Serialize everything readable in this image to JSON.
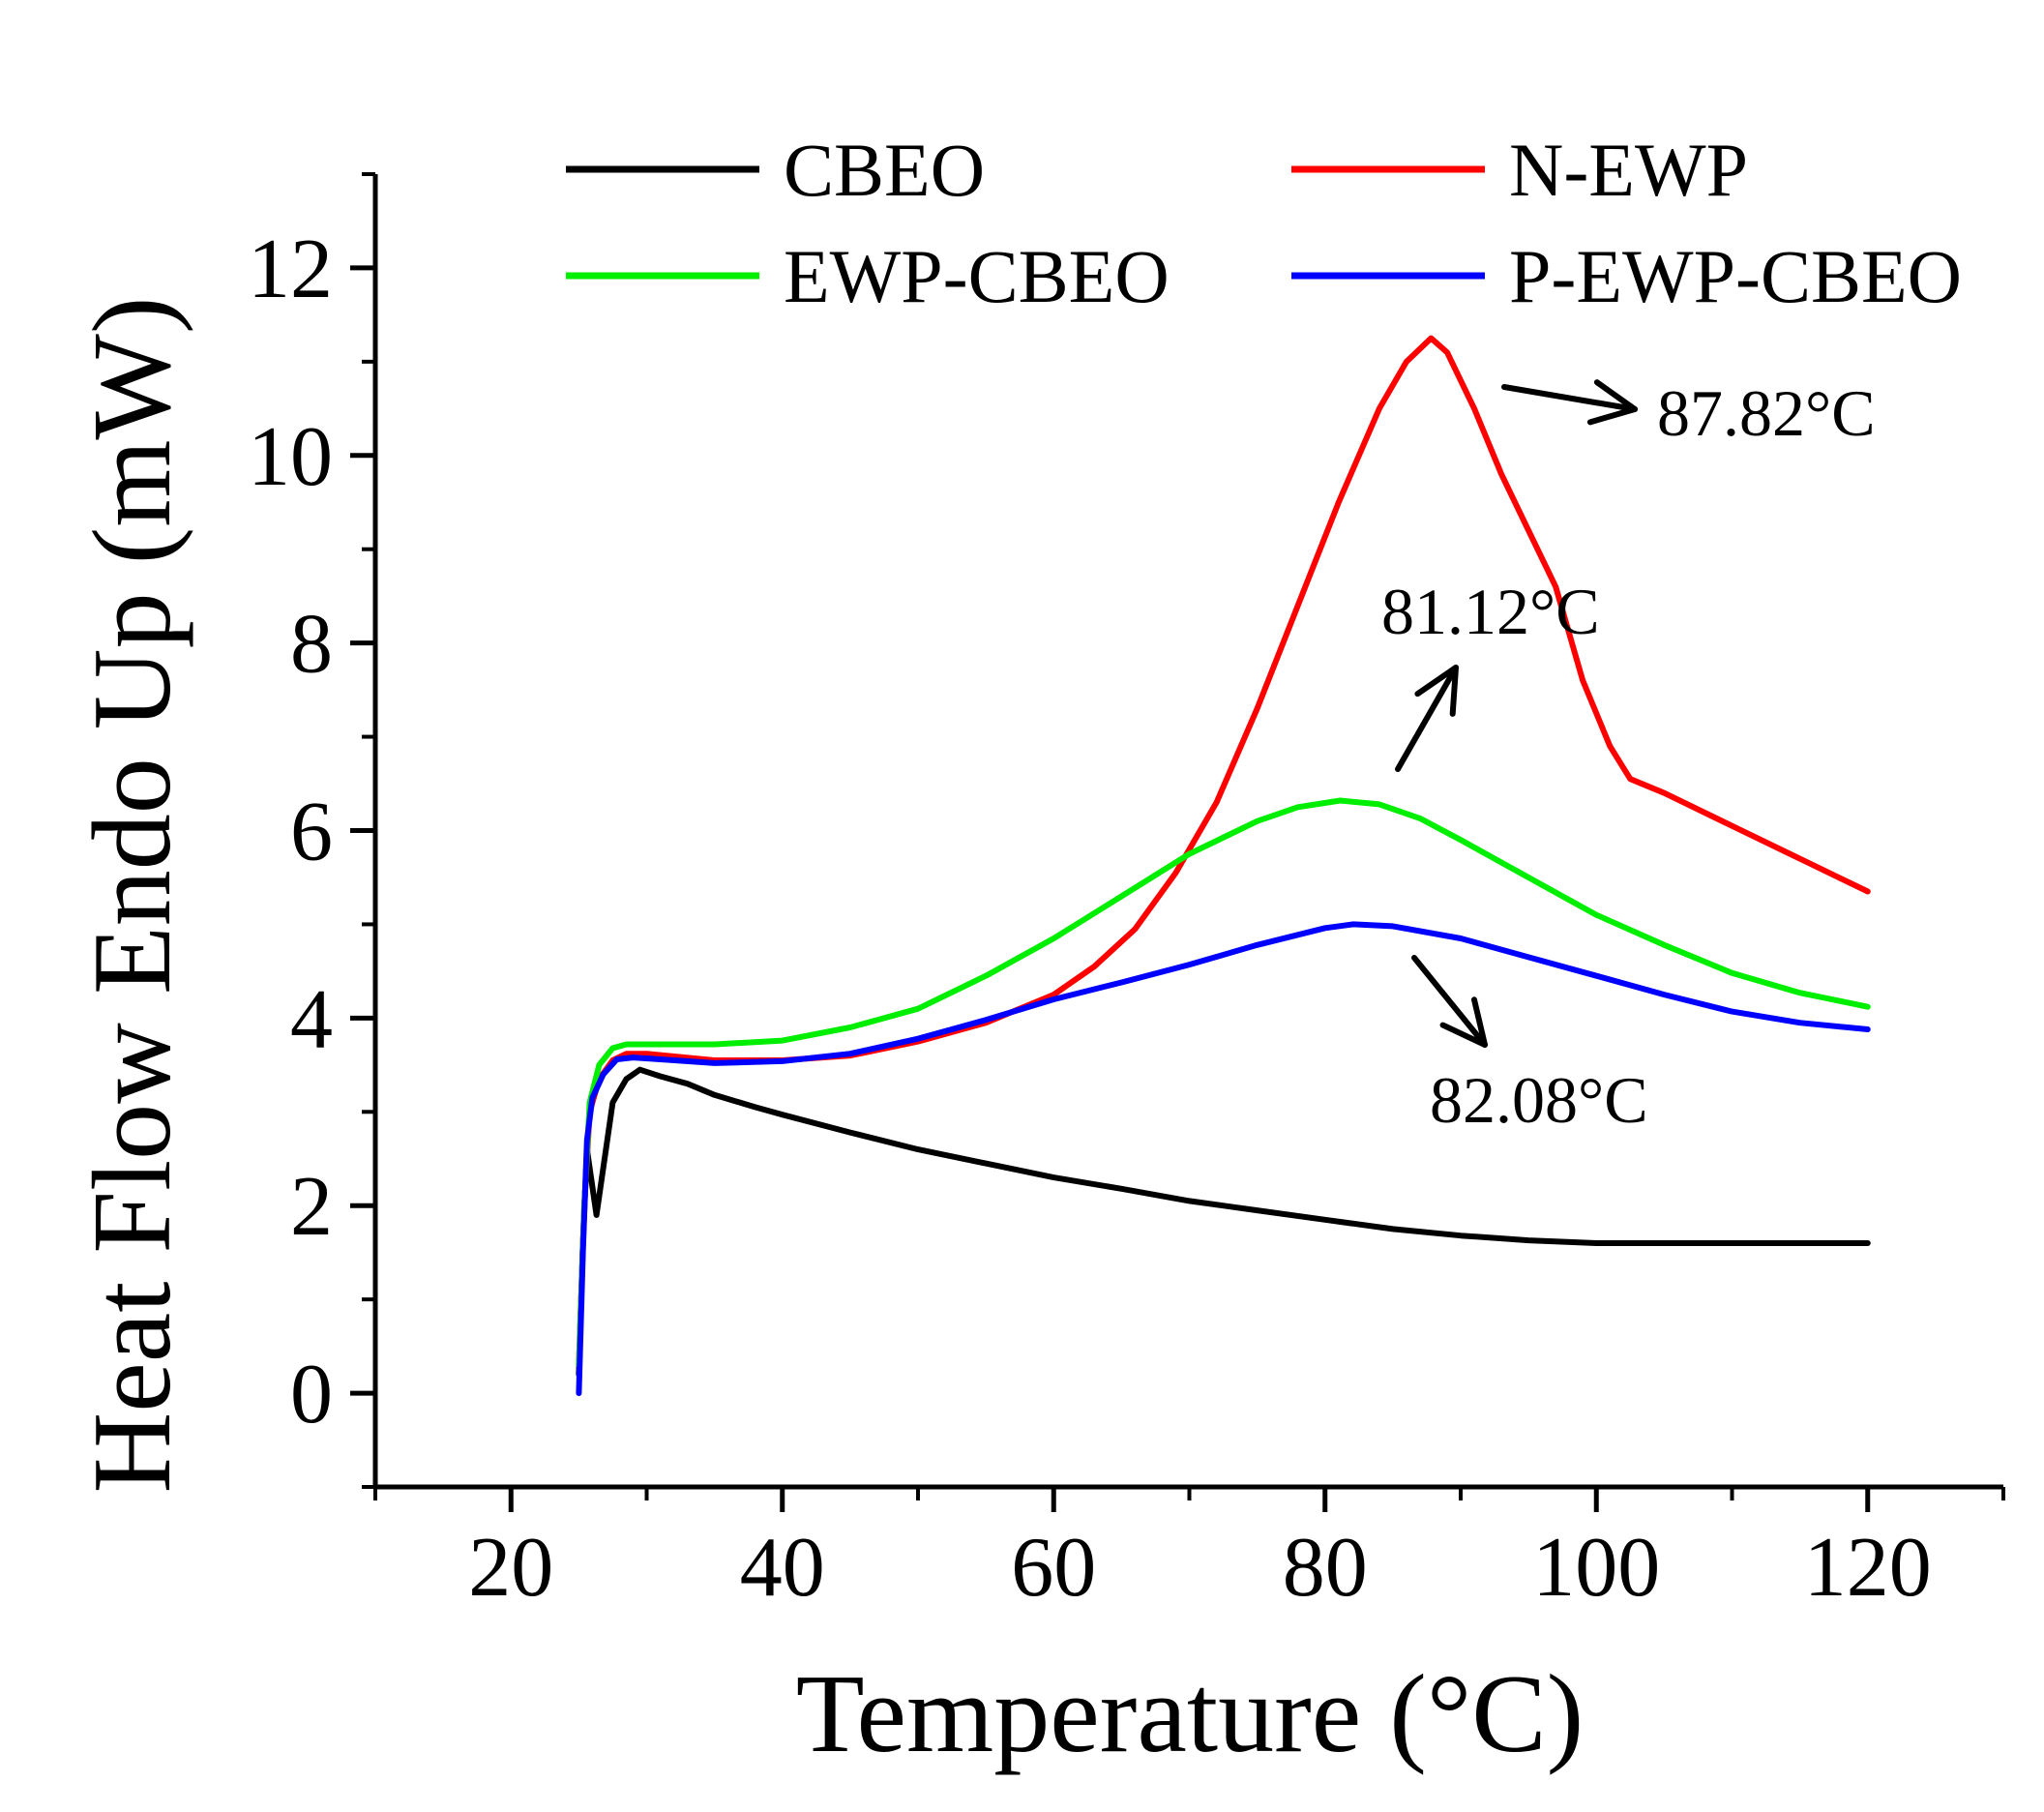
{
  "chart_data": {
    "type": "line",
    "xlabel": "Temperature (°C)",
    "ylabel": "Heat Flow Endo Up (mW)",
    "xlim": [
      10,
      130
    ],
    "ylim": [
      -1,
      13
    ],
    "x_ticks": [
      20,
      40,
      60,
      80,
      100,
      120
    ],
    "x_tick_labels": [
      "20",
      "40",
      "60",
      "80",
      "100",
      "120"
    ],
    "y_ticks": [
      0,
      2,
      4,
      6,
      8,
      10,
      12
    ],
    "y_tick_labels": [
      "0",
      "2",
      "4",
      "6",
      "8",
      "10",
      "12"
    ],
    "legend_position": "top",
    "series": [
      {
        "name": "CBEO",
        "color": "#000000",
        "points": [
          [
            25.0,
            0.2
          ],
          [
            25.3,
            1.6
          ],
          [
            25.6,
            2.6
          ],
          [
            26.0,
            2.2
          ],
          [
            26.3,
            1.9
          ],
          [
            26.8,
            2.4
          ],
          [
            27.5,
            3.1
          ],
          [
            28.5,
            3.35
          ],
          [
            29.5,
            3.45
          ],
          [
            31,
            3.38
          ],
          [
            33,
            3.3
          ],
          [
            35,
            3.18
          ],
          [
            38,
            3.05
          ],
          [
            40,
            2.97
          ],
          [
            45,
            2.78
          ],
          [
            50,
            2.6
          ],
          [
            55,
            2.45
          ],
          [
            60,
            2.3
          ],
          [
            65,
            2.18
          ],
          [
            70,
            2.05
          ],
          [
            75,
            1.95
          ],
          [
            80,
            1.85
          ],
          [
            85,
            1.75
          ],
          [
            90,
            1.68
          ],
          [
            95,
            1.63
          ],
          [
            100,
            1.6
          ],
          [
            105,
            1.6
          ],
          [
            110,
            1.6
          ],
          [
            115,
            1.6
          ],
          [
            120,
            1.6
          ]
        ]
      },
      {
        "name": "N-EWP",
        "color": "#ff0000",
        "points": [
          [
            25.0,
            0.3
          ],
          [
            25.4,
            2.0
          ],
          [
            25.8,
            3.0
          ],
          [
            26.5,
            3.35
          ],
          [
            27.5,
            3.55
          ],
          [
            28.5,
            3.62
          ],
          [
            30,
            3.62
          ],
          [
            35,
            3.55
          ],
          [
            40,
            3.55
          ],
          [
            45,
            3.6
          ],
          [
            50,
            3.75
          ],
          [
            55,
            3.95
          ],
          [
            60,
            4.25
          ],
          [
            63,
            4.55
          ],
          [
            66,
            4.95
          ],
          [
            69,
            5.55
          ],
          [
            72,
            6.3
          ],
          [
            75,
            7.3
          ],
          [
            78,
            8.4
          ],
          [
            81,
            9.5
          ],
          [
            84,
            10.5
          ],
          [
            86,
            11.0
          ],
          [
            87.82,
            11.25
          ],
          [
            89,
            11.1
          ],
          [
            91,
            10.5
          ],
          [
            93,
            9.8
          ],
          [
            95,
            9.2
          ],
          [
            97,
            8.6
          ],
          [
            99,
            7.6
          ],
          [
            101,
            6.9
          ],
          [
            102.5,
            6.55
          ],
          [
            105,
            6.4
          ],
          [
            110,
            6.05
          ],
          [
            115,
            5.7
          ],
          [
            120,
            5.35
          ]
        ]
      },
      {
        "name": "EWP-CBEO",
        "color": "#00ee00",
        "points": [
          [
            25.0,
            0.3
          ],
          [
            25.4,
            2.0
          ],
          [
            25.8,
            3.1
          ],
          [
            26.5,
            3.5
          ],
          [
            27.5,
            3.68
          ],
          [
            28.5,
            3.72
          ],
          [
            30,
            3.72
          ],
          [
            35,
            3.72
          ],
          [
            40,
            3.76
          ],
          [
            45,
            3.9
          ],
          [
            50,
            4.1
          ],
          [
            55,
            4.45
          ],
          [
            60,
            4.85
          ],
          [
            65,
            5.3
          ],
          [
            70,
            5.75
          ],
          [
            75,
            6.1
          ],
          [
            78,
            6.25
          ],
          [
            81.12,
            6.32
          ],
          [
            84,
            6.28
          ],
          [
            87,
            6.13
          ],
          [
            90,
            5.9
          ],
          [
            95,
            5.5
          ],
          [
            100,
            5.1
          ],
          [
            105,
            4.78
          ],
          [
            110,
            4.48
          ],
          [
            115,
            4.27
          ],
          [
            120,
            4.12
          ]
        ]
      },
      {
        "name": "P-EWP-CBEO",
        "color": "#0000ff",
        "points": [
          [
            25.0,
            0.0
          ],
          [
            25.3,
            1.5
          ],
          [
            25.6,
            2.7
          ],
          [
            26.0,
            3.15
          ],
          [
            26.8,
            3.4
          ],
          [
            27.8,
            3.56
          ],
          [
            29,
            3.58
          ],
          [
            31,
            3.56
          ],
          [
            35,
            3.52
          ],
          [
            40,
            3.54
          ],
          [
            45,
            3.62
          ],
          [
            50,
            3.78
          ],
          [
            55,
            3.98
          ],
          [
            60,
            4.2
          ],
          [
            65,
            4.38
          ],
          [
            70,
            4.57
          ],
          [
            75,
            4.78
          ],
          [
            80,
            4.96
          ],
          [
            82.08,
            5.0
          ],
          [
            85,
            4.98
          ],
          [
            90,
            4.85
          ],
          [
            95,
            4.65
          ],
          [
            100,
            4.45
          ],
          [
            105,
            4.25
          ],
          [
            110,
            4.07
          ],
          [
            115,
            3.95
          ],
          [
            120,
            3.88
          ]
        ]
      }
    ],
    "annotations": [
      {
        "text": "87.82°C",
        "arrow": "right"
      },
      {
        "text": "81.12°C",
        "arrow": "up"
      },
      {
        "text": "82.08°C",
        "arrow": "down-right"
      }
    ]
  }
}
